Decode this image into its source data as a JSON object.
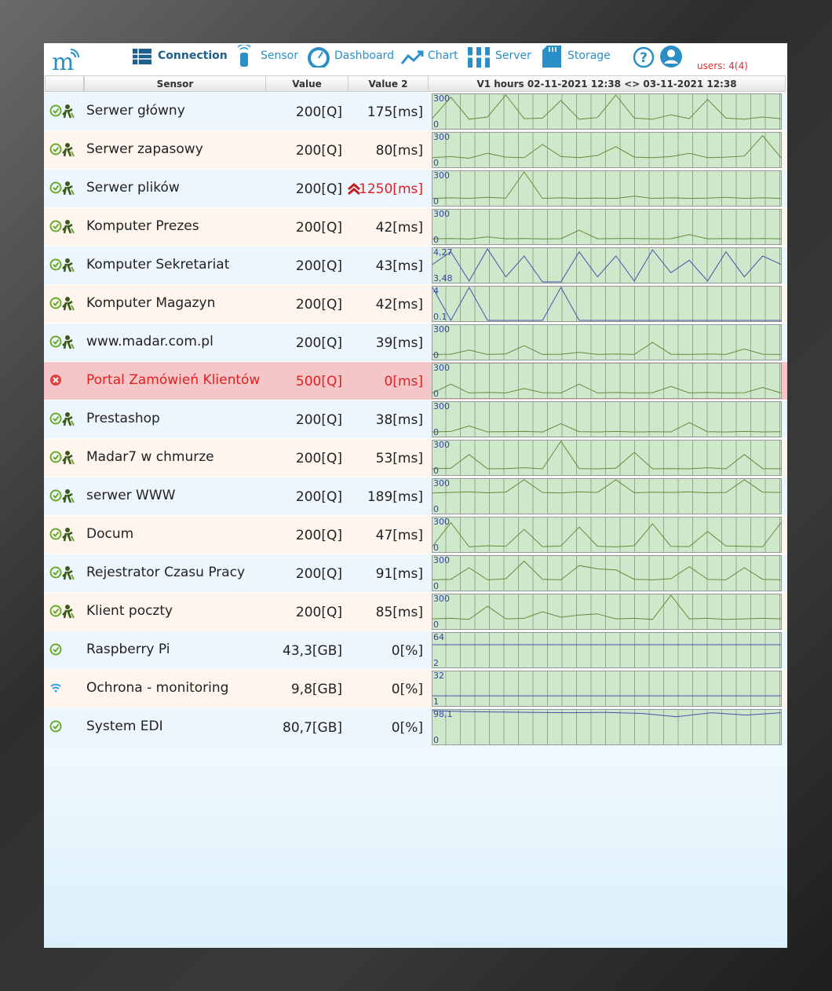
{
  "nav": {
    "items": [
      "Connection",
      "Sensor",
      "Dashboard",
      "Chart",
      "Server",
      "Storage"
    ],
    "users": "users: 4(4)"
  },
  "table": {
    "headers": [
      "Sensor",
      "Value",
      "Value 2",
      "V1 hours 02-11-2021 12:38 <> 03-11-2021 12:38"
    ],
    "rows": [
      {
        "name": "Serwer główny",
        "value": "200[Q]",
        "value2": "175[ms]",
        "status": "ok",
        "scale": [
          300,
          0
        ],
        "trace": [
          90,
          280,
          80,
          100,
          300,
          85,
          90,
          250,
          80,
          95,
          300,
          90,
          80,
          120,
          85,
          260,
          90,
          80,
          100,
          85
        ]
      },
      {
        "name": "Serwer zapasowy",
        "value": "200[Q]",
        "value2": "80[ms]",
        "status": "ok",
        "scale": [
          300,
          0
        ],
        "trace": [
          80,
          90,
          75,
          120,
          85,
          80,
          200,
          90,
          80,
          100,
          180,
          85,
          80,
          90,
          120,
          80,
          85,
          95,
          280,
          80
        ]
      },
      {
        "name": "Serwer plików",
        "value": "200[Q]",
        "value2": "1250[ms]",
        "status": "ok",
        "value2_alert": true,
        "scale": [
          300,
          0
        ],
        "trace": [
          60,
          65,
          60,
          70,
          62,
          300,
          60,
          65,
          60,
          62,
          60,
          80,
          60,
          65,
          60,
          62,
          70,
          60,
          65,
          60
        ]
      },
      {
        "name": "Komputer Prezes",
        "value": "200[Q]",
        "value2": "42[ms]",
        "status": "ok",
        "scale": [
          300,
          0
        ],
        "trace": [
          42,
          45,
          40,
          60,
          42,
          44,
          41,
          43,
          120,
          42,
          45,
          44,
          42,
          43,
          80,
          42,
          44,
          42,
          45,
          42
        ]
      },
      {
        "name": "Komputer Sekretariat",
        "value": "200[Q]",
        "value2": "43[ms]",
        "status": "ok",
        "color": "#4455aa",
        "scale": [
          {
            "value": 4.27,
            "label": "4,27"
          },
          {
            "value": 3.48,
            "label": "3,48"
          }
        ],
        "trace": [
          3.9,
          4.2,
          3.5,
          4.27,
          3.6,
          4.1,
          3.48,
          3.48,
          4.2,
          3.6,
          4.1,
          3.5,
          4.25,
          3.7,
          4.0,
          3.5,
          4.2,
          3.6,
          4.1,
          3.9
        ]
      },
      {
        "name": "Komputer Magazyn",
        "value": "200[Q]",
        "value2": "42[ms]",
        "status": "ok",
        "color": "#4455aa",
        "scale": [
          4,
          0.1
        ],
        "trace": [
          4,
          0.1,
          4,
          0.1,
          0.1,
          0.1,
          0.1,
          4,
          0.1,
          0.1,
          0.1,
          0.1,
          0.1,
          0.1,
          0.1,
          0.1,
          0.1,
          0.1,
          0.1,
          0.1
        ]
      },
      {
        "name": "www.madar.com.pl",
        "value": "200[Q]",
        "value2": "39[ms]",
        "status": "ok",
        "scale": [
          300,
          0
        ],
        "trace": [
          40,
          42,
          80,
          40,
          45,
          120,
          40,
          42,
          60,
          40,
          44,
          40,
          150,
          42,
          40,
          45,
          40,
          90,
          42,
          40
        ]
      },
      {
        "name": "Portal Zamówień Klientów",
        "value": "500[Q]",
        "value2": "0[ms]",
        "status": "error",
        "scale": [
          300,
          0
        ],
        "trace": [
          40,
          120,
          40,
          45,
          40,
          80,
          42,
          40,
          120,
          40,
          45,
          40,
          42,
          100,
          40,
          45,
          40,
          42,
          90,
          40
        ]
      },
      {
        "name": "Prestashop",
        "value": "200[Q]",
        "value2": "38[ms]",
        "status": "ok",
        "scale": [
          300,
          0
        ],
        "trace": [
          35,
          40,
          90,
          36,
          38,
          40,
          35,
          110,
          38,
          36,
          40,
          35,
          38,
          36,
          120,
          38,
          35,
          40,
          36,
          38
        ]
      },
      {
        "name": "Madar7 w chmurze",
        "value": "200[Q]",
        "value2": "53[ms]",
        "status": "ok",
        "scale": [
          300,
          0
        ],
        "trace": [
          50,
          55,
          180,
          50,
          52,
          60,
          50,
          300,
          52,
          50,
          55,
          200,
          50,
          52,
          50,
          60,
          50,
          180,
          52,
          50
        ]
      },
      {
        "name": "serwer WWW",
        "value": "200[Q]",
        "value2": "189[ms]",
        "status": "ok",
        "scale": [
          300,
          0
        ],
        "trace": [
          180,
          185,
          190,
          182,
          188,
          300,
          185,
          180,
          190,
          185,
          300,
          182,
          188,
          185,
          190,
          182,
          185,
          300,
          188,
          185
        ]
      },
      {
        "name": "Docum",
        "value": "200[Q]",
        "value2": "47[ms]",
        "status": "ok",
        "scale": [
          300,
          0
        ],
        "trace": [
          45,
          260,
          40,
          50,
          45,
          200,
          42,
          48,
          220,
          45,
          40,
          50,
          250,
          45,
          42,
          180,
          48,
          45,
          40,
          260
        ]
      },
      {
        "name": "Rejestrator Czasu Pracy",
        "value": "200[Q]",
        "value2": "91[ms]",
        "status": "ok",
        "scale": [
          300,
          0
        ],
        "trace": [
          90,
          95,
          200,
          90,
          100,
          260,
          95,
          90,
          220,
          190,
          180,
          95,
          90,
          100,
          210,
          95,
          90,
          200,
          95,
          90
        ]
      },
      {
        "name": "Klient poczty",
        "value": "200[Q]",
        "value2": "85[ms]",
        "status": "ok",
        "scale": [
          300,
          0
        ],
        "trace": [
          85,
          90,
          80,
          200,
          85,
          90,
          150,
          100,
          120,
          130,
          85,
          90,
          80,
          300,
          85,
          90,
          80,
          85,
          90,
          85
        ]
      },
      {
        "name": "Raspberry Pi",
        "value": "43,3[GB]",
        "value2": "0[%]",
        "status": "plain",
        "color": "#4455aa",
        "scale": [
          64,
          2
        ],
        "trace": [
          43.3,
          43.3
        ]
      },
      {
        "name": "Ochrona - monitoring",
        "value": "9,8[GB]",
        "value2": "0[%]",
        "status": "wifi",
        "color": "#4455aa",
        "scale": [
          32,
          1
        ],
        "trace": [
          9.8,
          9.8
        ]
      },
      {
        "name": "System EDI",
        "value": "80,7[GB]",
        "value2": "0[%]",
        "status": "plain",
        "color": "#4455aa",
        "scale": [
          {
            "value": 98.1,
            "label": "98,1"
          },
          0
        ],
        "trace": [
          98.1,
          95,
          94,
          93,
          92,
          93,
          90,
          80,
          92,
          85,
          92
        ]
      }
    ]
  }
}
